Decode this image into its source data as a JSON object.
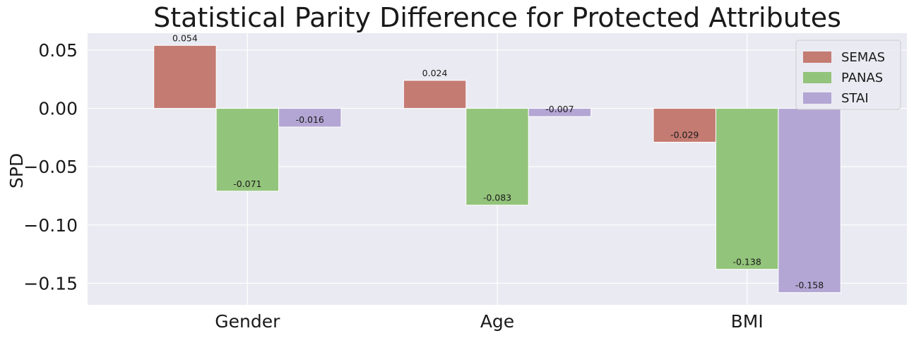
{
  "chart_data": {
    "type": "bar",
    "title": "Statistical Parity Difference for Protected Attributes",
    "xlabel": "",
    "ylabel": "SPD",
    "categories": [
      "Gender",
      "Age",
      "BMI"
    ],
    "series": [
      {
        "name": "SEMAS",
        "values": [
          0.054,
          0.024,
          -0.029
        ],
        "labels": [
          "0.054",
          "0.024",
          "-0.029"
        ],
        "color": "#c47b72"
      },
      {
        "name": "PANAS",
        "values": [
          -0.071,
          -0.083,
          -0.138
        ],
        "labels": [
          "-0.071",
          "-0.083",
          "-0.138"
        ],
        "color": "#93c47b"
      },
      {
        "name": "STAI",
        "values": [
          -0.016,
          -0.007,
          -0.158
        ],
        "labels": [
          "-0.016",
          "-0.007",
          "-0.158"
        ],
        "color": "#b3a6d4"
      }
    ],
    "ylim": [
      -0.1685,
      0.0645
    ],
    "yticks": [
      0.05,
      0.0,
      -0.05,
      -0.1,
      -0.15
    ],
    "ytick_labels": [
      "0.05",
      "0.00",
      "−0.05",
      "−0.10",
      "−0.15"
    ],
    "grid": true,
    "legend_position": "top-right",
    "background": "#eaeaf2",
    "grid_color": "#ffffff"
  }
}
